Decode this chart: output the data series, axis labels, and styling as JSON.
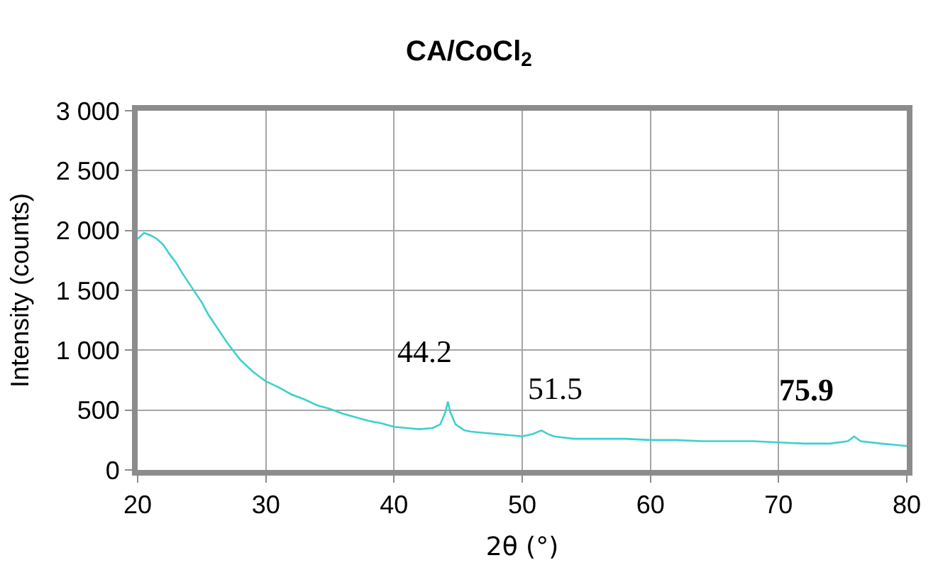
{
  "chart_data": {
    "type": "line",
    "title": "CA/CoCl$_{2}$",
    "xlabel": "2θ (°)",
    "ylabel": "Intensity (counts)",
    "x": [
      20,
      20.5,
      21,
      21.5,
      22,
      22.5,
      23,
      23.5,
      24,
      24.5,
      25,
      25.5,
      26,
      26.5,
      27,
      27.5,
      28,
      29,
      30,
      31,
      32,
      33,
      34,
      35,
      36,
      37,
      38,
      39,
      40,
      41,
      42,
      43,
      43.6,
      44,
      44.2,
      44.4,
      44.8,
      45.5,
      46,
      47,
      48,
      49,
      50,
      50.8,
      51.5,
      52,
      52.5,
      54,
      56,
      58,
      60,
      62,
      64,
      66,
      68,
      70,
      72,
      74,
      75.4,
      75.9,
      76.4,
      78,
      79,
      80
    ],
    "series": [
      {
        "color": "#3fcfcf",
        "values": [
          1930,
          1980,
          1960,
          1930,
          1880,
          1800,
          1730,
          1640,
          1560,
          1480,
          1400,
          1300,
          1220,
          1140,
          1060,
          990,
          920,
          820,
          740,
          690,
          630,
          590,
          540,
          510,
          470,
          440,
          410,
          390,
          360,
          350,
          340,
          350,
          380,
          480,
          570,
          480,
          380,
          330,
          320,
          310,
          300,
          290,
          280,
          300,
          330,
          300,
          280,
          260,
          260,
          260,
          250,
          250,
          240,
          240,
          240,
          230,
          220,
          220,
          240,
          280,
          240,
          220,
          210,
          200
        ]
      }
    ],
    "xlim": [
      20,
      80
    ],
    "xticks": [
      20,
      30,
      40,
      50,
      60,
      70,
      80
    ],
    "ylim": [
      0,
      3000
    ],
    "yticks": [
      0,
      500,
      {
        "value": 1000,
        "label": "1 000"
      },
      {
        "value": 1500,
        "label": "1 500"
      },
      {
        "value": 2000,
        "label": "2 000"
      },
      {
        "value": 2500,
        "label": "2 500"
      },
      {
        "value": 3000,
        "label": "3 000"
      }
    ],
    "grid": true,
    "marker": "none",
    "line_style": "solid",
    "annotations": [
      {
        "text": "44.2",
        "x": 44.2,
        "y": 570
      },
      {
        "text": "51.5",
        "x": 51.5,
        "y": 330
      },
      {
        "text": "75.9",
        "x": 75.9,
        "y": 280
      }
    ]
  }
}
